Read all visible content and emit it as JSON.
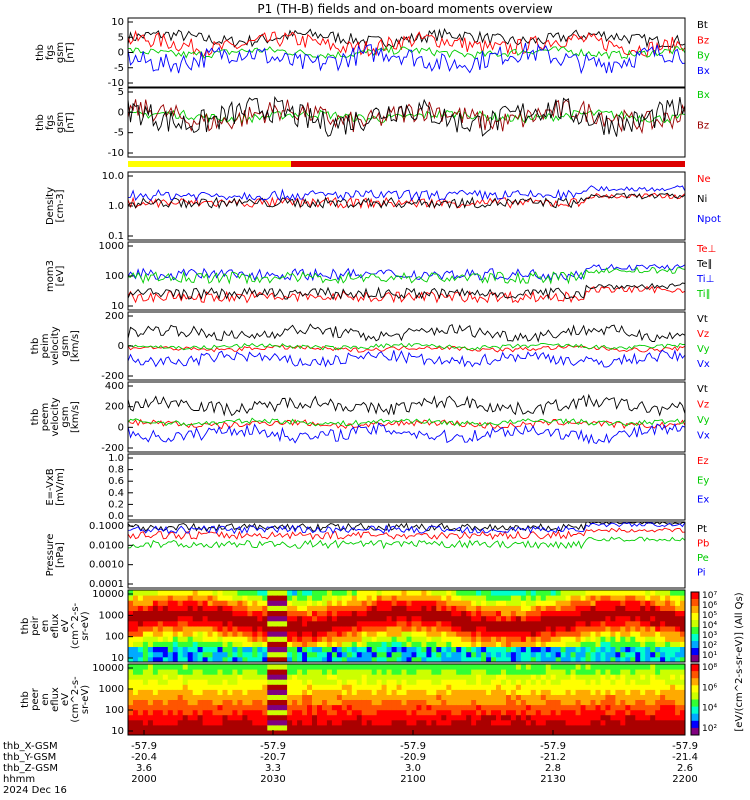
{
  "title": "P1 (TH-B) fields and on-board moments overview",
  "date_label": "2024 Dec 16",
  "colors": {
    "black": "#000000",
    "red": "#ff0000",
    "green": "#00cc00",
    "blue": "#0000ff",
    "darkred": "#990000",
    "yellow": "#ffff00"
  },
  "chart_data": [
    {
      "id": "fgs",
      "type": "line",
      "ylabel": [
        "thb",
        "fgs",
        "gsm",
        "[nT]"
      ],
      "yticks": [
        "10",
        "5",
        "0",
        "-5",
        "-10"
      ],
      "ylim": [
        -12,
        12
      ],
      "series": [
        {
          "name": "Bt",
          "color": "black",
          "base": 5,
          "amp": 3
        },
        {
          "name": "Bz",
          "color": "red",
          "base": 3,
          "amp": 4
        },
        {
          "name": "By",
          "color": "green",
          "base": 0,
          "amp": 2
        },
        {
          "name": "Bx",
          "color": "blue",
          "base": -2,
          "amp": 5
        }
      ]
    },
    {
      "id": "fgs_dsl",
      "type": "line",
      "ylabel": [
        "thb",
        "fgs",
        "gsm",
        "[nT]"
      ],
      "yticks": [
        "5",
        "0",
        "-5",
        "-10"
      ],
      "ylim": [
        -13,
        9
      ],
      "series": [
        {
          "name": "Bx",
          "color": "green",
          "base": 0,
          "amp": 2
        },
        {
          "name": "Bz",
          "color": "darkred",
          "base": 0,
          "amp": 5
        },
        {
          "name": "",
          "color": "black",
          "base": 0,
          "amp": 6
        }
      ]
    },
    {
      "id": "density",
      "type": "line",
      "ylabel": [
        "Density",
        "[cm-3]"
      ],
      "yticks": [
        "10.0",
        "1.0",
        "0.1"
      ],
      "log": true,
      "ylim": [
        0.1,
        50
      ],
      "series": [
        {
          "name": "Ne",
          "color": "red",
          "base": 3,
          "amp": 2
        },
        {
          "name": "Ni",
          "color": "black",
          "base": 3,
          "amp": 2
        },
        {
          "name": "Npot",
          "color": "blue",
          "base": 6,
          "amp": 3
        }
      ]
    },
    {
      "id": "temp",
      "type": "line",
      "ylabel": [
        "mom3",
        "[eV]"
      ],
      "yticks": [
        "1000",
        "100",
        "10"
      ],
      "log": true,
      "ylim": [
        10,
        3000
      ],
      "series": [
        {
          "name": "Te⊥",
          "color": "red",
          "base": 30,
          "amp": 20
        },
        {
          "name": "Te∥",
          "color": "black",
          "base": 40,
          "amp": 20
        },
        {
          "name": "Ti⊥",
          "color": "blue",
          "base": 200,
          "amp": 100
        },
        {
          "name": "Ti∥",
          "color": "green",
          "base": 150,
          "amp": 80
        }
      ]
    },
    {
      "id": "peim",
      "type": "line",
      "ylabel": [
        "thb",
        "peim",
        "velocity",
        "gsm",
        "[km/s]"
      ],
      "yticks": [
        "200",
        "0",
        "-200"
      ],
      "ylim": [
        -300,
        350
      ],
      "series": [
        {
          "name": "Vt",
          "color": "black",
          "base": 150,
          "amp": 80
        },
        {
          "name": "Vz",
          "color": "red",
          "base": 0,
          "amp": 30
        },
        {
          "name": "Vy",
          "color": "green",
          "base": 20,
          "amp": 30
        },
        {
          "name": "Vx",
          "color": "blue",
          "base": -100,
          "amp": 80
        }
      ]
    },
    {
      "id": "peem",
      "type": "line",
      "ylabel": [
        "thb",
        "peem",
        "velocity",
        "gsm",
        "[km/s]"
      ],
      "yticks": [
        "400",
        "200",
        "0",
        "-200"
      ],
      "ylim": [
        -300,
        450
      ],
      "series": [
        {
          "name": "Vt",
          "color": "black",
          "base": 200,
          "amp": 100
        },
        {
          "name": "Vz",
          "color": "red",
          "base": 0,
          "amp": 50
        },
        {
          "name": "Vy",
          "color": "green",
          "base": 20,
          "amp": 40
        },
        {
          "name": "Vx",
          "color": "blue",
          "base": -100,
          "amp": 100
        }
      ]
    },
    {
      "id": "efield",
      "type": "line",
      "ylabel": [
        "E=-VxB",
        "[mV/m]"
      ],
      "yticks": [
        "1.0",
        "0.8",
        "0.6",
        "0.4",
        "0.2",
        "0.0"
      ],
      "ylim": [
        0,
        1
      ],
      "series": [
        {
          "name": "Ez",
          "color": "red",
          "base": 0,
          "amp": 0
        },
        {
          "name": "Ey",
          "color": "green",
          "base": 0,
          "amp": 0
        },
        {
          "name": "Ex",
          "color": "blue",
          "base": 0,
          "amp": 0
        }
      ]
    },
    {
      "id": "pressure",
      "type": "line",
      "ylabel": [
        "Pressure",
        "[nPa]"
      ],
      "yticks": [
        "0.1000",
        "0.0100",
        "0.0010",
        "0.0001"
      ],
      "log": true,
      "ylim": [
        5e-05,
        0.15
      ],
      "series": [
        {
          "name": "Pt",
          "color": "black",
          "base": 0.08,
          "amp": 0.02
        },
        {
          "name": "Pb",
          "color": "red",
          "base": 0.03,
          "amp": 0.02
        },
        {
          "name": "Pe",
          "color": "green",
          "base": 0.01,
          "amp": 0.005
        },
        {
          "name": "Pi",
          "color": "blue",
          "base": 0.06,
          "amp": 0.02
        }
      ]
    },
    {
      "id": "peir",
      "type": "heatmap",
      "ylabel": [
        "thb",
        "peir",
        "en",
        "eflux",
        "eV",
        "(cm^2-s-",
        "sr-eV)"
      ],
      "yticks": [
        "10000",
        "1000",
        "100",
        "10"
      ],
      "log": true,
      "ylim": [
        5,
        25000
      ]
    },
    {
      "id": "peer",
      "type": "heatmap",
      "ylabel": [
        "thb",
        "peer",
        "en",
        "eflux",
        "eV",
        "(cm^2-s-",
        "sr-eV)"
      ],
      "yticks": [
        "10000",
        "1000",
        "100",
        "10"
      ],
      "log": true,
      "ylim": [
        5,
        25000
      ]
    }
  ],
  "colorbar": {
    "label": "[eV/(cm^2-s-sr-eV)] (All Qs)",
    "ticks1": [
      "10⁷",
      "10⁶",
      "10⁵",
      "10⁴",
      "10³",
      "10²",
      "10¹"
    ],
    "ticks2": [
      "10⁸",
      "10⁶",
      "10⁴",
      "10²"
    ]
  },
  "time_axis": {
    "row_labels": [
      "thb_X-GSM",
      "thb_Y-GSM",
      "thb_Z-GSM",
      "hhmm",
      "2024 Dec 16"
    ],
    "columns": [
      {
        "x": "-57.9",
        "y": "-20.4",
        "z": "3.6",
        "t": "2000"
      },
      {
        "x": "-57.9",
        "y": "-20.7",
        "z": "3.3",
        "t": "2030"
      },
      {
        "x": "-57.9",
        "y": "-20.9",
        "z": "3.0",
        "t": "2100"
      },
      {
        "x": "-57.9",
        "y": "-21.2",
        "z": "2.8",
        "t": "2130"
      },
      {
        "x": "-57.9",
        "y": "-21.4",
        "z": "2.6",
        "t": "2200"
      }
    ]
  }
}
